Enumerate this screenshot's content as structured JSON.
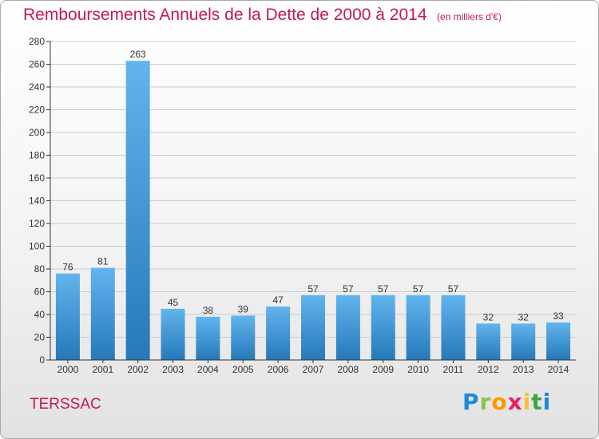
{
  "header": {
    "title": "Remboursements Annuels de la Dette de 2000 à 2014",
    "subtitle": "(en milliers d'€)"
  },
  "footer": {
    "commune": "TERSSAC",
    "logo_letters": [
      "P",
      "r",
      "o",
      "x",
      "i",
      "t",
      "i"
    ],
    "logo_colors": [
      "#1e88e5",
      "#8bc34a",
      "#ff9800",
      "#e91e63",
      "#fbc02d",
      "#43a047",
      "#1e88e5"
    ]
  },
  "colors": {
    "bar_light": "#62b4ee",
    "bar_dark": "#2579b8",
    "axis": "#333333",
    "grid": "#cccccc",
    "title": "#c2185b"
  },
  "chart_data": {
    "type": "bar",
    "title": "Remboursements Annuels de la Dette de 2000 à 2014",
    "subtitle": "(en milliers d'€)",
    "categories": [
      "2000",
      "2001",
      "2002",
      "2003",
      "2004",
      "2005",
      "2006",
      "2007",
      "2008",
      "2009",
      "2010",
      "2011",
      "2012",
      "2013",
      "2014"
    ],
    "values": [
      76,
      81,
      263,
      45,
      38,
      39,
      47,
      57,
      57,
      57,
      57,
      57,
      32,
      32,
      33
    ],
    "ylim": [
      0,
      280
    ],
    "yticks": [
      0,
      20,
      40,
      60,
      80,
      100,
      120,
      140,
      160,
      180,
      200,
      220,
      240,
      260,
      280
    ],
    "xlabel": "",
    "ylabel": "",
    "grid": true,
    "data_labels": true
  }
}
